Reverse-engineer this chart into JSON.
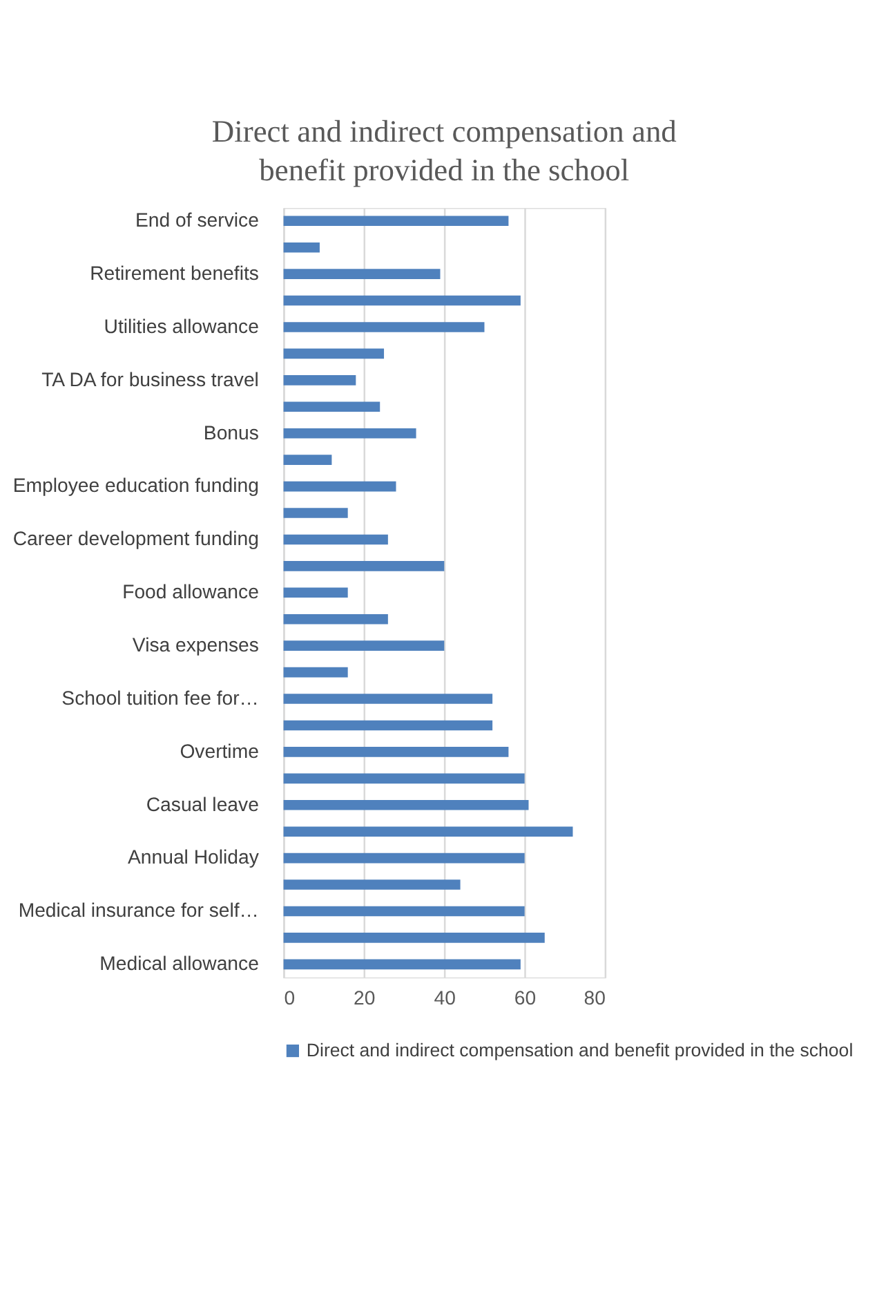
{
  "chart_data": {
    "type": "bar",
    "orientation": "horizontal",
    "title": "Direct and indirect compensation and benefit provided in the school",
    "categories": [
      "End of service",
      null,
      "Retirement benefits",
      null,
      "Utilities allowance",
      null,
      "TA DA for business travel",
      null,
      "Bonus",
      null,
      "Employee education funding",
      null,
      "Career development funding",
      null,
      "Food allowance",
      null,
      "Visa expenses",
      null,
      "School tuition fee for…",
      null,
      "Overtime",
      null,
      "Casual leave",
      null,
      "Annual Holiday",
      null,
      "Medical insurance for self…",
      null,
      "Medical allowance"
    ],
    "series": [
      {
        "name": "Direct and indirect compensation and benefit provided in the school",
        "color": "#4f81bd",
        "values": [
          56,
          9,
          39,
          59,
          50,
          25,
          18,
          24,
          33,
          12,
          28,
          16,
          26,
          40,
          16,
          26,
          40,
          16,
          52,
          52,
          56,
          60,
          61,
          72,
          60,
          44,
          60,
          65,
          59
        ]
      }
    ],
    "xlim": [
      0,
      80
    ],
    "xticks": [
      0,
      20,
      40,
      60,
      80
    ],
    "grid": "x",
    "legend": "bottom"
  }
}
